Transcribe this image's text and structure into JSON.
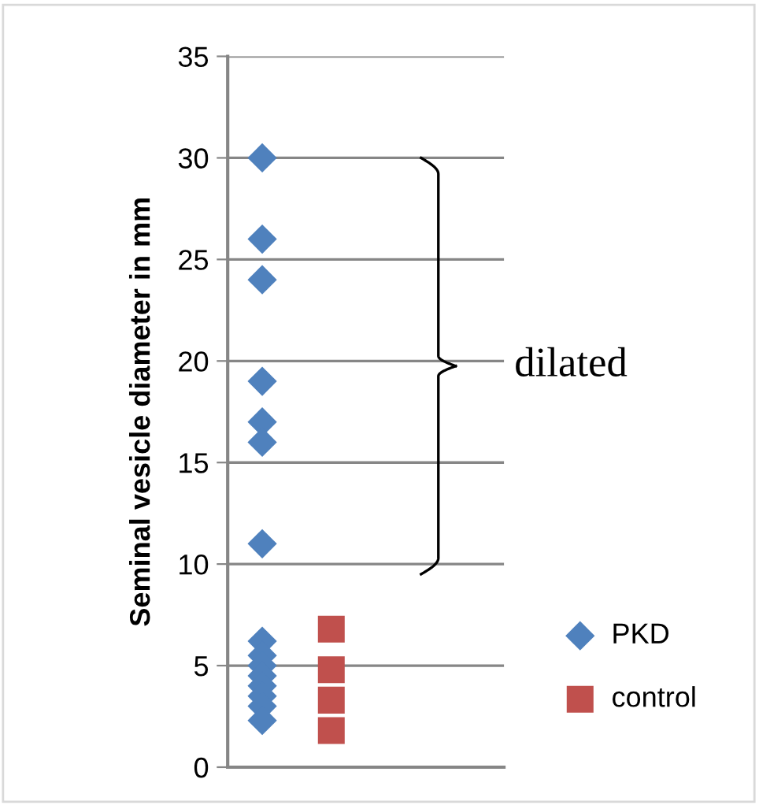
{
  "chart_data": {
    "type": "scatter",
    "ylabel": "Seminal vesicle diameter in mm",
    "categories": [
      null,
      null,
      null,
      null
    ],
    "series": [
      {
        "name": "PKD",
        "color": "#4f81bd",
        "marker": "diamond",
        "values": [
          30,
          null,
          null,
          null
        ]
      },
      {
        "color": "#4f81bd",
        "marker": "diamond",
        "values": [
          26,
          null,
          null,
          null
        ]
      },
      {
        "color": "#4f81bd",
        "marker": "diamond",
        "values": [
          24,
          null,
          null,
          null
        ]
      },
      {
        "color": "#4f81bd",
        "marker": "diamond",
        "values": [
          19,
          null,
          null,
          null
        ]
      },
      {
        "color": "#4f81bd",
        "marker": "diamond",
        "values": [
          17,
          null,
          null,
          null
        ]
      },
      {
        "color": "#4f81bd",
        "marker": "diamond",
        "values": [
          16,
          null,
          null,
          null
        ]
      },
      {
        "color": "#4f81bd",
        "marker": "diamond",
        "values": [
          11,
          null,
          null,
          null
        ]
      },
      {
        "color": "#4f81bd",
        "marker": "diamond",
        "values": [
          6.2,
          null,
          null,
          null
        ]
      },
      {
        "color": "#4f81bd",
        "marker": "diamond",
        "values": [
          5.5,
          null,
          null,
          null
        ]
      },
      {
        "color": "#4f81bd",
        "marker": "diamond",
        "values": [
          5,
          null,
          null,
          null
        ]
      },
      {
        "color": "#4f81bd",
        "marker": "diamond",
        "values": [
          4.5,
          null,
          null,
          null
        ]
      },
      {
        "color": "#4f81bd",
        "marker": "diamond",
        "values": [
          4,
          null,
          null,
          null
        ]
      },
      {
        "color": "#4f81bd",
        "marker": "diamond",
        "values": [
          3.5,
          null,
          null,
          null
        ]
      },
      {
        "color": "#4f81bd",
        "marker": "diamond",
        "values": [
          3,
          null,
          null,
          null
        ]
      },
      {
        "color": "#4f81bd",
        "marker": "diamond",
        "values": [
          2.3,
          null,
          null,
          null
        ]
      },
      {
        "name": "control",
        "color": "#c0504d",
        "marker": "square",
        "values": [
          null,
          6.8,
          null,
          null
        ]
      },
      {
        "color": "#c0504d",
        "marker": "square",
        "values": [
          null,
          4.8,
          null,
          null
        ]
      },
      {
        "color": "#c0504d",
        "marker": "square",
        "values": [
          null,
          3.3,
          null,
          null
        ]
      },
      {
        "color": "#c0504d",
        "marker": "square",
        "values": [
          null,
          1.8,
          null,
          null
        ]
      }
    ],
    "ylim": [
      0,
      35
    ],
    "yticks": [
      0,
      5,
      10,
      15,
      20,
      25,
      30,
      35
    ],
    "grid": "y",
    "legend": "right",
    "annotations": [
      "dilated"
    ]
  }
}
